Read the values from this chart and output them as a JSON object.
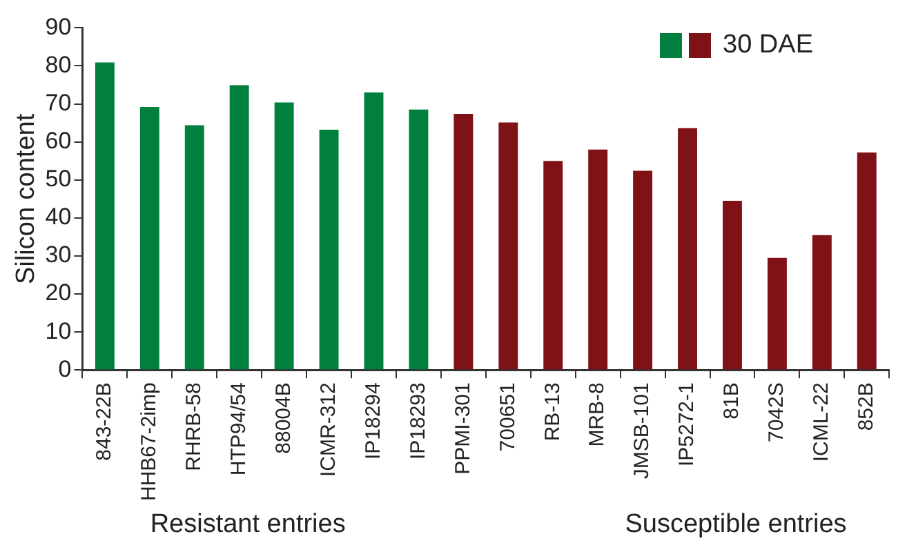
{
  "chart_data": {
    "type": "bar",
    "ylabel": "Silicon content",
    "categories": [
      "843-22B",
      "HHB67-2imp",
      "RHRB-58",
      "HTP94/54",
      "88004B",
      "ICMR-312",
      "IP18294",
      "IP18293",
      "PPMI-301",
      "700651",
      "RB-13",
      "MRB-8",
      "JMSB-101",
      "IP5272-1",
      "81B",
      "7042S",
      "ICML-22",
      "852B"
    ],
    "series": [
      {
        "name": "30 DAE",
        "colors": [
          "#007f3f",
          "#007f3f",
          "#007f3f",
          "#007f3f",
          "#007f3f",
          "#007f3f",
          "#007f3f",
          "#007f3f",
          "#7f1216",
          "#7f1216",
          "#7f1216",
          "#7f1216",
          "#7f1216",
          "#7f1216",
          "#7f1216",
          "#7f1216",
          "#7f1216",
          "#7f1216"
        ],
        "values": [
          80.9,
          69.2,
          64.4,
          74.9,
          70.4,
          63.2,
          73,
          68.5,
          67.4,
          65.1,
          55,
          58,
          52.4,
          63.6,
          44.5,
          29.5,
          35.5,
          57.2
        ]
      }
    ],
    "ylim": [
      0,
      90
    ],
    "yticks": [
      0,
      10,
      20,
      30,
      40,
      50,
      60,
      70,
      80,
      90
    ],
    "grid": false,
    "legend": "top right",
    "annotations": [
      "Resistant entries",
      "Susceptible entries"
    ]
  }
}
